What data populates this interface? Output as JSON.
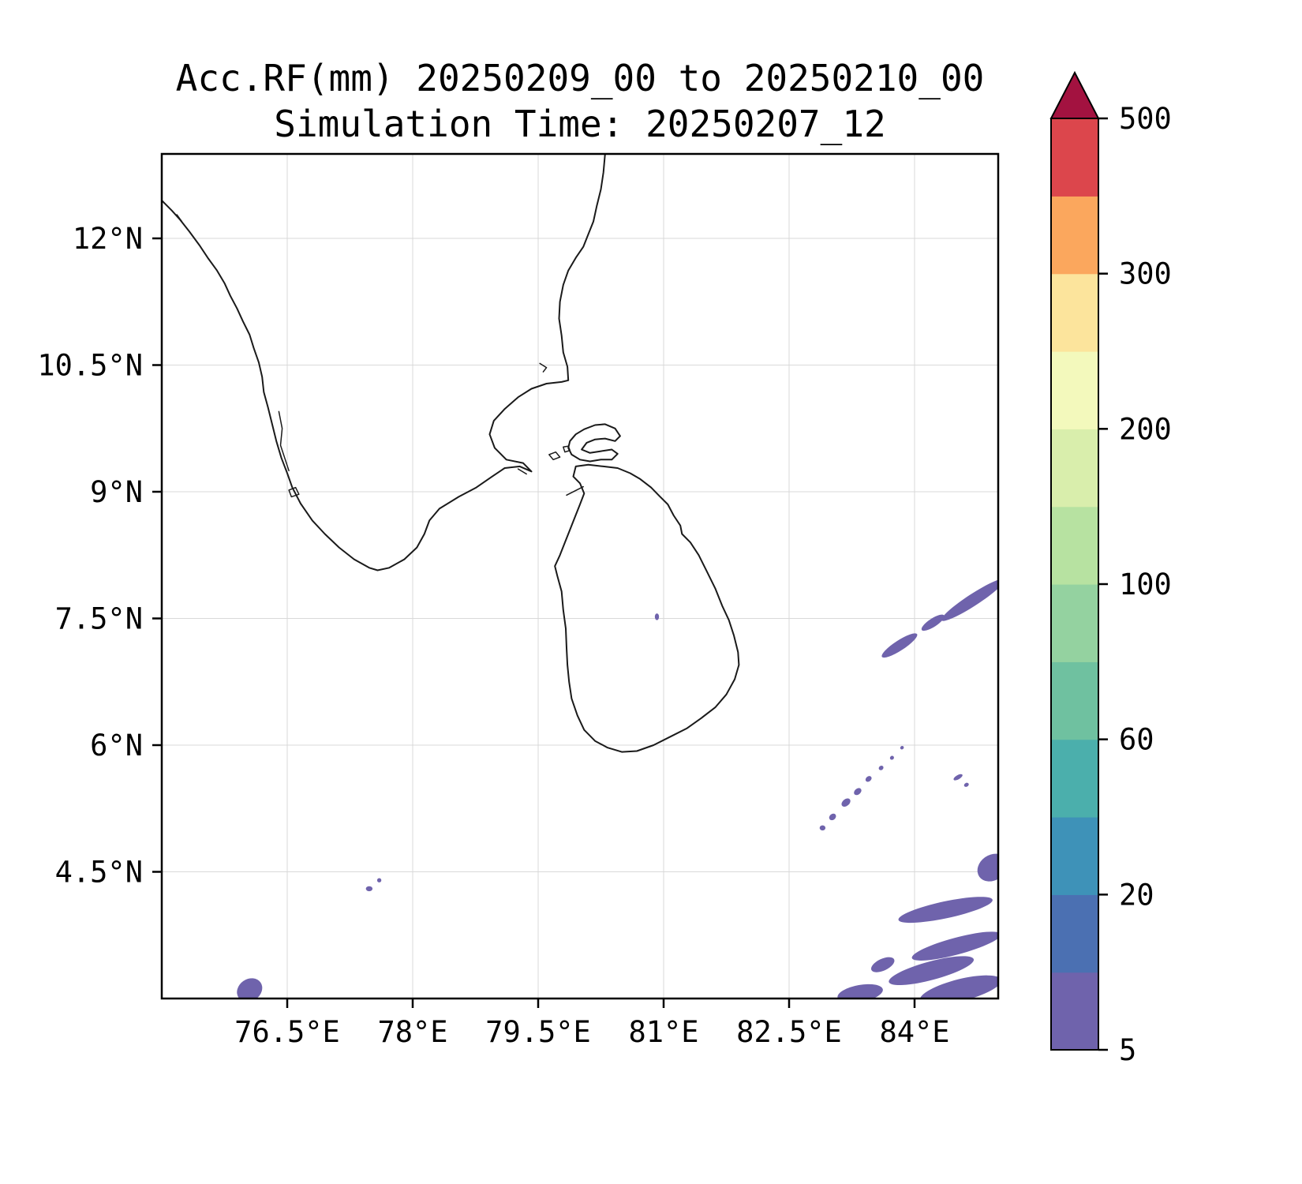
{
  "chart_data": {
    "type": "heatmap",
    "title": "Acc.RF(mm) 20250209_00 to 20250210_00",
    "subtitle": "Simulation Time: 20250207_12",
    "variable": "Accumulated rainfall",
    "units": "mm",
    "lon_range": [
      75,
      85
    ],
    "lat_range": [
      3,
      13
    ],
    "x_tick_lons": [
      76.5,
      78,
      79.5,
      81,
      82.5,
      84
    ],
    "x_tick_labels": [
      "76.5°E",
      "78°E",
      "79.5°E",
      "81°E",
      "82.5°E",
      "84°E"
    ],
    "y_tick_lats": [
      12,
      10.5,
      9,
      7.5,
      6,
      4.5
    ],
    "y_tick_labels": [
      "12°N",
      "10.5°N",
      "9°N",
      "7.5°N",
      "6°N",
      "4.5°N"
    ],
    "grid_color": "#d9d9d9",
    "coastline_color": "#1a1a1a",
    "colorbar": {
      "levels": [
        5,
        10,
        20,
        40,
        60,
        80,
        100,
        150,
        200,
        250,
        300,
        400,
        500
      ],
      "colors": [
        "#6F63AC",
        "#4B70B2",
        "#3E92B8",
        "#4BAFAC",
        "#6FC1A0",
        "#94D2A0",
        "#B7E2A1",
        "#D9EEAC",
        "#F3F9BC",
        "#FCE49C",
        "#FBA75D",
        "#DC464C"
      ],
      "over_color": "#A31240",
      "tick_values": [
        5,
        20,
        60,
        100,
        200,
        300,
        500
      ],
      "tick_labels": [
        "5",
        "20",
        "60",
        "100",
        "200",
        "300",
        "500"
      ]
    },
    "rain_patches_value_range": "5-20 mm (lowest color bands)",
    "rain_patches": [
      {
        "lon": 84.37,
        "lat": 4.05,
        "w": 1.15,
        "h": 0.2,
        "rot": -12,
        "band": 0
      },
      {
        "lon": 84.93,
        "lat": 4.55,
        "w": 0.38,
        "h": 0.3,
        "rot": -35,
        "band": 0
      },
      {
        "lon": 84.5,
        "lat": 3.62,
        "w": 1.1,
        "h": 0.2,
        "rot": -15,
        "band": 0
      },
      {
        "lon": 84.2,
        "lat": 3.33,
        "w": 1.05,
        "h": 0.22,
        "rot": -15,
        "band": 0
      },
      {
        "lon": 84.55,
        "lat": 3.1,
        "w": 1.0,
        "h": 0.26,
        "rot": -14,
        "band": 0
      },
      {
        "lon": 83.35,
        "lat": 3.06,
        "w": 0.55,
        "h": 0.2,
        "rot": -10,
        "band": 0
      },
      {
        "lon": 83.62,
        "lat": 3.4,
        "w": 0.3,
        "h": 0.14,
        "rot": -25,
        "band": 0
      },
      {
        "lon": 84.7,
        "lat": 7.72,
        "w": 0.9,
        "h": 0.14,
        "rot": -33,
        "band": 0
      },
      {
        "lon": 84.22,
        "lat": 7.45,
        "w": 0.32,
        "h": 0.1,
        "rot": -33,
        "band": 0
      },
      {
        "lon": 83.82,
        "lat": 7.18,
        "w": 0.5,
        "h": 0.12,
        "rot": -33,
        "band": 0
      },
      {
        "lon": 82.9,
        "lat": 5.02,
        "w": 0.07,
        "h": 0.06,
        "rot": 0,
        "band": 0
      },
      {
        "lon": 83.02,
        "lat": 5.15,
        "w": 0.09,
        "h": 0.07,
        "rot": -40,
        "band": 0
      },
      {
        "lon": 83.18,
        "lat": 5.32,
        "w": 0.12,
        "h": 0.08,
        "rot": -40,
        "band": 0
      },
      {
        "lon": 83.32,
        "lat": 5.45,
        "w": 0.1,
        "h": 0.07,
        "rot": -40,
        "band": 0
      },
      {
        "lon": 83.45,
        "lat": 5.6,
        "w": 0.08,
        "h": 0.06,
        "rot": -40,
        "band": 0
      },
      {
        "lon": 83.6,
        "lat": 5.73,
        "w": 0.06,
        "h": 0.05,
        "rot": -40,
        "band": 0
      },
      {
        "lon": 83.73,
        "lat": 5.85,
        "w": 0.05,
        "h": 0.045,
        "rot": -40,
        "band": 0
      },
      {
        "lon": 83.85,
        "lat": 5.97,
        "w": 0.045,
        "h": 0.04,
        "rot": -40,
        "band": 0
      },
      {
        "lon": 84.52,
        "lat": 5.62,
        "w": 0.12,
        "h": 0.05,
        "rot": -30,
        "band": 0
      },
      {
        "lon": 84.62,
        "lat": 5.53,
        "w": 0.06,
        "h": 0.045,
        "rot": -30,
        "band": 0
      },
      {
        "lon": 77.48,
        "lat": 4.3,
        "w": 0.08,
        "h": 0.06,
        "rot": 0,
        "band": 0
      },
      {
        "lon": 77.6,
        "lat": 4.4,
        "w": 0.05,
        "h": 0.05,
        "rot": 0,
        "band": 0
      },
      {
        "lon": 76.05,
        "lat": 3.1,
        "w": 0.32,
        "h": 0.26,
        "rot": -35,
        "band": 0
      },
      {
        "lon": 80.92,
        "lat": 7.52,
        "w": 0.05,
        "h": 0.08,
        "rot": 0,
        "band": 0
      }
    ],
    "coastlines": [
      {
        "name": "india-south",
        "closed": false,
        "width": 2,
        "points": [
          [
            75.0,
            12.45
          ],
          [
            75.12,
            12.33
          ],
          [
            75.22,
            12.22
          ],
          [
            75.33,
            12.08
          ],
          [
            75.45,
            11.92
          ],
          [
            75.55,
            11.77
          ],
          [
            75.66,
            11.62
          ],
          [
            75.75,
            11.47
          ],
          [
            75.82,
            11.32
          ],
          [
            75.9,
            11.17
          ],
          [
            75.97,
            11.02
          ],
          [
            76.05,
            10.86
          ],
          [
            76.1,
            10.7
          ],
          [
            76.16,
            10.53
          ],
          [
            76.2,
            10.36
          ],
          [
            76.22,
            10.18
          ],
          [
            76.27,
            10.0
          ],
          [
            76.32,
            9.8
          ],
          [
            76.37,
            9.6
          ],
          [
            76.43,
            9.4
          ],
          [
            76.5,
            9.22
          ],
          [
            76.56,
            9.05
          ],
          [
            76.66,
            8.86
          ],
          [
            76.8,
            8.66
          ],
          [
            76.95,
            8.5
          ],
          [
            77.12,
            8.34
          ],
          [
            77.3,
            8.2
          ],
          [
            77.48,
            8.1
          ],
          [
            77.58,
            8.07
          ],
          [
            77.72,
            8.1
          ],
          [
            77.9,
            8.2
          ],
          [
            78.05,
            8.34
          ],
          [
            78.14,
            8.5
          ],
          [
            78.2,
            8.66
          ],
          [
            78.32,
            8.8
          ],
          [
            78.55,
            8.94
          ],
          [
            78.76,
            9.05
          ],
          [
            78.95,
            9.18
          ],
          [
            79.1,
            9.28
          ],
          [
            79.28,
            9.3
          ],
          [
            79.42,
            9.24
          ],
          [
            79.32,
            9.34
          ],
          [
            79.12,
            9.38
          ],
          [
            78.98,
            9.52
          ],
          [
            78.92,
            9.68
          ],
          [
            78.97,
            9.84
          ],
          [
            79.1,
            9.98
          ],
          [
            79.26,
            10.12
          ],
          [
            79.42,
            10.22
          ],
          [
            79.6,
            10.28
          ],
          [
            79.78,
            10.3
          ],
          [
            79.86,
            10.32
          ],
          [
            79.85,
            10.48
          ],
          [
            79.8,
            10.65
          ],
          [
            79.78,
            10.85
          ],
          [
            79.75,
            11.05
          ],
          [
            79.76,
            11.25
          ],
          [
            79.8,
            11.45
          ],
          [
            79.86,
            11.62
          ],
          [
            79.95,
            11.77
          ],
          [
            80.04,
            11.9
          ],
          [
            80.1,
            12.05
          ],
          [
            80.16,
            12.2
          ],
          [
            80.2,
            12.38
          ],
          [
            80.25,
            12.58
          ],
          [
            80.28,
            12.78
          ],
          [
            80.3,
            13.0
          ]
        ]
      },
      {
        "name": "kerala-backwater",
        "closed": false,
        "width": 1.5,
        "points": [
          [
            76.4,
            9.95
          ],
          [
            76.44,
            9.75
          ],
          [
            76.42,
            9.55
          ],
          [
            76.47,
            9.4
          ],
          [
            76.52,
            9.25
          ]
        ]
      },
      {
        "name": "ashtamudi-lake",
        "closed": true,
        "width": 1.5,
        "points": [
          [
            76.52,
            9.02
          ],
          [
            76.6,
            9.05
          ],
          [
            76.64,
            8.97
          ],
          [
            76.55,
            8.94
          ]
        ]
      },
      {
        "name": "sri-lanka-main",
        "closed": true,
        "width": 2,
        "points": [
          [
            79.95,
            9.3
          ],
          [
            80.1,
            9.32
          ],
          [
            80.28,
            9.3
          ],
          [
            80.45,
            9.28
          ],
          [
            80.6,
            9.22
          ],
          [
            80.72,
            9.15
          ],
          [
            80.85,
            9.05
          ],
          [
            80.95,
            8.95
          ],
          [
            81.05,
            8.85
          ],
          [
            81.12,
            8.72
          ],
          [
            81.2,
            8.6
          ],
          [
            81.22,
            8.5
          ],
          [
            81.32,
            8.4
          ],
          [
            81.42,
            8.25
          ],
          [
            81.52,
            8.05
          ],
          [
            81.62,
            7.85
          ],
          [
            81.7,
            7.65
          ],
          [
            81.78,
            7.48
          ],
          [
            81.84,
            7.3
          ],
          [
            81.89,
            7.1
          ],
          [
            81.9,
            6.95
          ],
          [
            81.85,
            6.78
          ],
          [
            81.75,
            6.6
          ],
          [
            81.62,
            6.45
          ],
          [
            81.45,
            6.32
          ],
          [
            81.28,
            6.2
          ],
          [
            81.08,
            6.1
          ],
          [
            80.88,
            6.0
          ],
          [
            80.68,
            5.93
          ],
          [
            80.5,
            5.92
          ],
          [
            80.33,
            5.97
          ],
          [
            80.18,
            6.05
          ],
          [
            80.05,
            6.18
          ],
          [
            79.97,
            6.35
          ],
          [
            79.9,
            6.55
          ],
          [
            79.87,
            6.75
          ],
          [
            79.85,
            6.95
          ],
          [
            79.84,
            7.15
          ],
          [
            79.83,
            7.38
          ],
          [
            79.8,
            7.6
          ],
          [
            79.78,
            7.82
          ],
          [
            79.73,
            8.0
          ],
          [
            79.7,
            8.12
          ],
          [
            79.76,
            8.25
          ],
          [
            79.82,
            8.4
          ],
          [
            79.88,
            8.55
          ],
          [
            79.94,
            8.7
          ],
          [
            80.0,
            8.85
          ],
          [
            80.05,
            8.98
          ],
          [
            80.0,
            9.1
          ],
          [
            79.92,
            9.18
          ]
        ]
      },
      {
        "name": "jaffna-peninsula",
        "closed": true,
        "width": 2,
        "points": [
          [
            79.88,
            9.6
          ],
          [
            79.95,
            9.68
          ],
          [
            80.05,
            9.74
          ],
          [
            80.18,
            9.79
          ],
          [
            80.3,
            9.8
          ],
          [
            80.42,
            9.75
          ],
          [
            80.48,
            9.66
          ],
          [
            80.42,
            9.6
          ],
          [
            80.3,
            9.63
          ],
          [
            80.18,
            9.62
          ],
          [
            80.08,
            9.58
          ],
          [
            80.02,
            9.5
          ],
          [
            80.12,
            9.46
          ],
          [
            80.25,
            9.48
          ],
          [
            80.38,
            9.5
          ],
          [
            80.45,
            9.45
          ],
          [
            80.38,
            9.38
          ],
          [
            80.25,
            9.38
          ],
          [
            80.12,
            9.36
          ],
          [
            80.0,
            9.38
          ],
          [
            79.9,
            9.44
          ],
          [
            79.86,
            9.52
          ]
        ]
      },
      {
        "name": "delft-island",
        "closed": true,
        "width": 1.5,
        "points": [
          [
            79.63,
            9.44
          ],
          [
            79.71,
            9.47
          ],
          [
            79.76,
            9.41
          ],
          [
            79.68,
            9.38
          ]
        ]
      },
      {
        "name": "small-island",
        "closed": true,
        "width": 1.5,
        "points": [
          [
            79.8,
            9.53
          ],
          [
            79.86,
            9.54
          ],
          [
            79.88,
            9.49
          ],
          [
            79.82,
            9.47
          ]
        ]
      },
      {
        "name": "mannar-island",
        "closed": false,
        "width": 1.5,
        "points": [
          [
            79.84,
            8.96
          ],
          [
            79.94,
            9.01
          ],
          [
            80.04,
            9.06
          ]
        ]
      },
      {
        "name": "adams-bridge",
        "closed": false,
        "width": 1.5,
        "points": [
          [
            79.26,
            9.27
          ],
          [
            79.36,
            9.21
          ]
        ]
      },
      {
        "name": "point-calimere-spit",
        "closed": false,
        "width": 1.5,
        "points": [
          [
            79.52,
            10.52
          ],
          [
            79.6,
            10.47
          ],
          [
            79.56,
            10.42
          ]
        ]
      },
      {
        "name": "offshore-marks-nw",
        "closed": false,
        "width": 1.5,
        "points": [
          [
            75.18,
            12.28
          ],
          [
            75.24,
            12.2
          ]
        ]
      }
    ]
  }
}
